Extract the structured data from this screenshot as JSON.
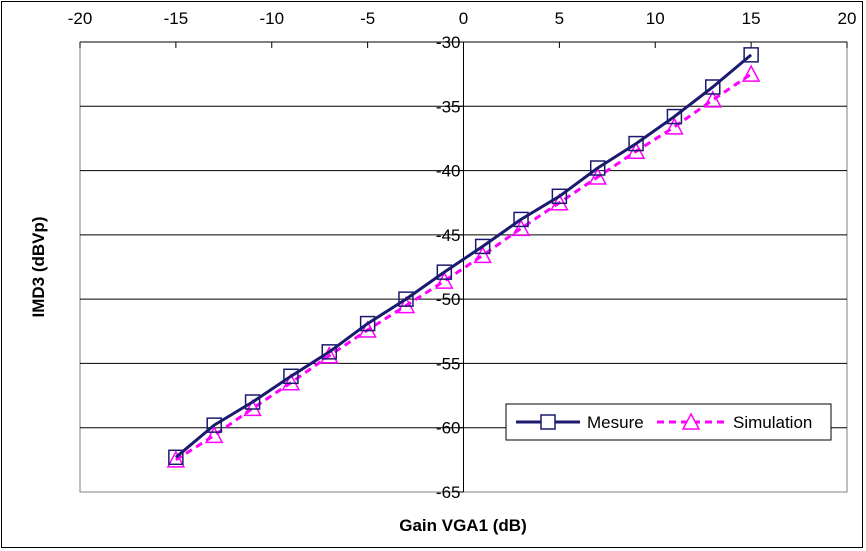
{
  "chart_data": {
    "type": "line",
    "title": "",
    "xlabel": "Gain VGA1 (dB)",
    "ylabel": "IMD3 (dBVp)",
    "xlim": [
      -20,
      20
    ],
    "ylim": [
      -65,
      -30
    ],
    "x_ticks": [
      -20,
      -15,
      -10,
      -5,
      0,
      5,
      10,
      15,
      20
    ],
    "y_ticks": [
      -30,
      -35,
      -40,
      -45,
      -50,
      -55,
      -60,
      -65
    ],
    "x_axis_crosses_at_y": -30,
    "grid": "horizontal",
    "legend_position": "bottom-right",
    "series": [
      {
        "name": "Mesure",
        "color": "#1a1a6e",
        "line_style": "solid",
        "marker": "square",
        "x": [
          -15,
          -13,
          -11,
          -9,
          -7,
          -5,
          -3,
          -1,
          1,
          3,
          5,
          7,
          9,
          11,
          13,
          15
        ],
        "y": [
          -62.3,
          -59.8,
          -58.0,
          -56.0,
          -54.1,
          -51.9,
          -50.0,
          -47.9,
          -45.9,
          -43.8,
          -42.0,
          -39.8,
          -37.9,
          -35.8,
          -33.5,
          -31.0
        ]
      },
      {
        "name": "Simulation",
        "color": "#ff00ff",
        "line_style": "dashed",
        "marker": "triangle",
        "x": [
          -15,
          -13,
          -11,
          -9,
          -7,
          -5,
          -3,
          -1,
          1,
          3,
          5,
          7,
          9,
          11,
          13,
          15
        ],
        "y": [
          -62.5,
          -60.6,
          -58.5,
          -56.5,
          -54.4,
          -52.4,
          -50.5,
          -48.6,
          -46.6,
          -44.5,
          -42.5,
          -40.5,
          -38.5,
          -36.6,
          -34.5,
          -32.5
        ]
      }
    ]
  }
}
